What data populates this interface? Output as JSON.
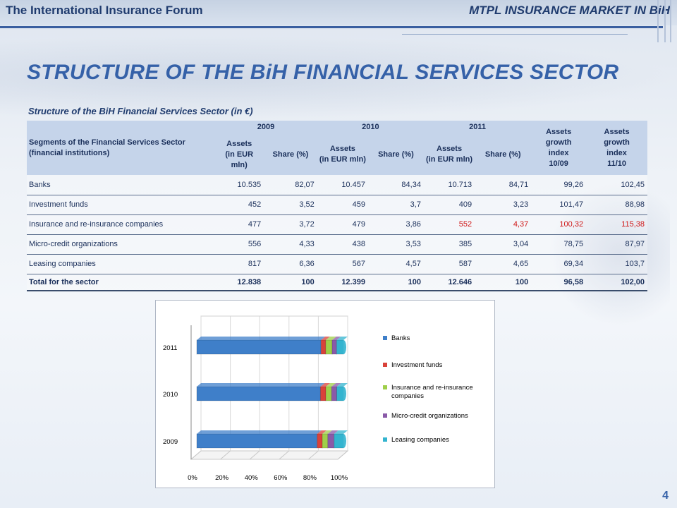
{
  "header": {
    "left": "The International Insurance Forum",
    "right": "MTPL INSURANCE MARKET IN BiH"
  },
  "title": "STRUCTURE OF THE BiH FINANCIAL SERVICES SECTOR",
  "subtitle": "Structure of the BiH Financial Services Sector (in €)",
  "table": {
    "seg_header_1": "Segments of the Financial Services Sector",
    "seg_header_2": "(financial institutions)",
    "years": [
      "2009",
      "2010",
      "2011"
    ],
    "assets_label": "Assets",
    "assets_unit": "(in EUR mln)",
    "share_label": "Share (%)",
    "growth_1": [
      "Assets",
      "growth",
      "index",
      "10/09"
    ],
    "growth_2": [
      "Assets",
      "growth",
      "index",
      "11/10"
    ],
    "rows": [
      {
        "name": "Banks",
        "v": [
          "10.535",
          "82,07",
          "10.457",
          "84,34",
          "10.713",
          "84,71",
          "99,26",
          "102,45"
        ]
      },
      {
        "name": "Investment funds",
        "v": [
          "452",
          "3,52",
          "459",
          "3,7",
          "409",
          "3,23",
          "101,47",
          "88,98"
        ]
      },
      {
        "name": "Insurance and re-insurance  companies",
        "v": [
          "477",
          "3,72",
          "479",
          "3,86",
          "552",
          "4,37",
          "100,32",
          "115,38"
        ]
      },
      {
        "name": "Micro-credit organizations",
        "v": [
          "556",
          "4,33",
          "438",
          "3,53",
          "385",
          "3,04",
          "78,75",
          "87,97"
        ]
      },
      {
        "name": "Leasing companies",
        "v": [
          "817",
          "6,36",
          "567",
          "4,57",
          "587",
          "4,65",
          "69,34",
          "103,7"
        ]
      }
    ],
    "total": {
      "name": "Total for the sector",
      "v": [
        "12.838",
        "100",
        "12.399",
        "100",
        "12.646",
        "100",
        "96,58",
        "102,00"
      ]
    }
  },
  "chart_data": {
    "type": "bar",
    "orientation": "horizontal",
    "stacked": "100%",
    "categories": [
      "2011",
      "2010",
      "2009"
    ],
    "x_ticks": [
      "0%",
      "20%",
      "40%",
      "60%",
      "80%",
      "100%"
    ],
    "xlim": [
      0,
      100
    ],
    "legend": "right",
    "series": [
      {
        "name": "Banks",
        "color": "#3f7fc9",
        "values": [
          84.71,
          84.34,
          82.07
        ]
      },
      {
        "name": "Investment funds",
        "color": "#d9423a",
        "values": [
          3.23,
          3.7,
          3.52
        ]
      },
      {
        "name": "Insurance and re-insurance companies",
        "color": "#9fcf4a",
        "values": [
          4.37,
          3.86,
          3.72
        ]
      },
      {
        "name": "Micro-credit organizations",
        "color": "#8a5aa8",
        "values": [
          3.04,
          3.53,
          4.33
        ]
      },
      {
        "name": "Leasing companies",
        "color": "#33b4cf",
        "values": [
          4.65,
          4.57,
          6.36
        ]
      }
    ]
  },
  "page_number": "4"
}
